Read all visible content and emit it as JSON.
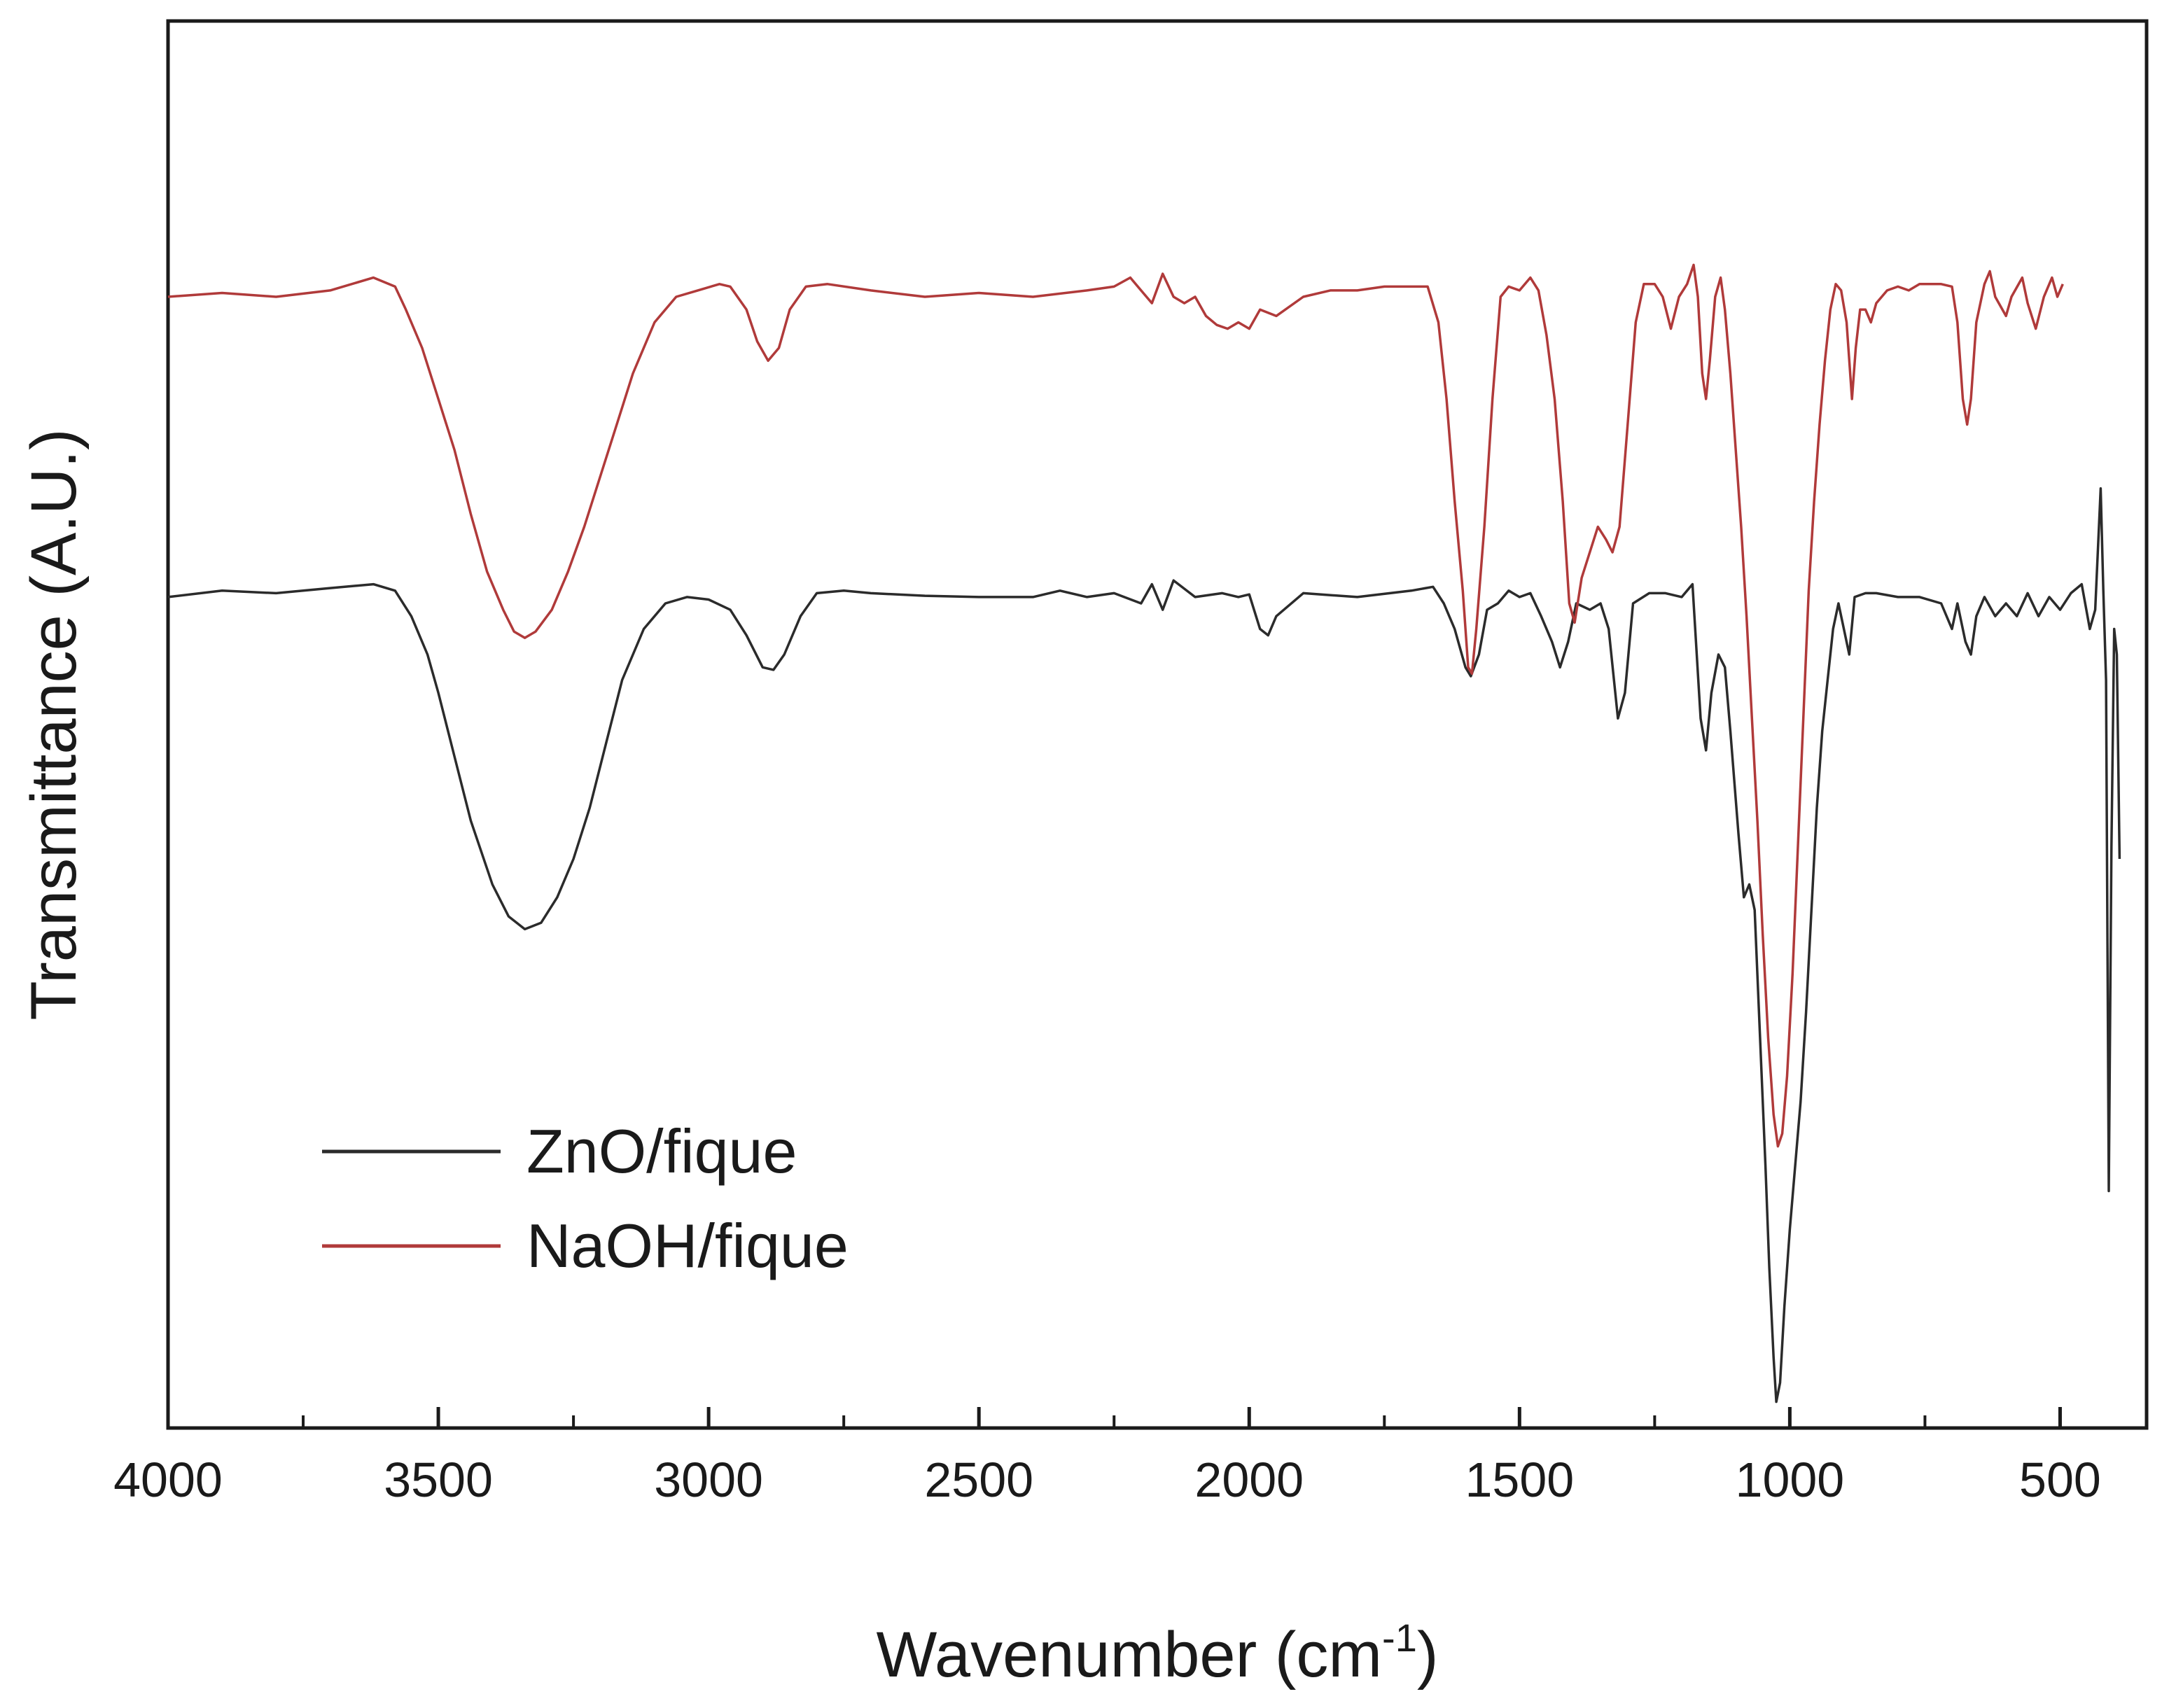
{
  "chart_data": {
    "type": "line",
    "title": "",
    "xlabel": "Wavenumber (cm",
    "xlabel_sup": "-1",
    "xlabel_close": ")",
    "ylabel": "Transmittance (A.U.)",
    "xlim": [
      4000,
      340
    ],
    "x_reversed": true,
    "ylim": [
      0,
      100
    ],
    "x_ticks": [
      4000,
      3500,
      3000,
      2500,
      2000,
      1500,
      1000,
      500
    ],
    "x_tick_labels": [
      "4000",
      "3500",
      "3000",
      "2500",
      "2000",
      "1500",
      "1000",
      "500"
    ],
    "x_minor_ticks": [
      3750,
      3250,
      2750,
      2250,
      1750,
      1250,
      750
    ],
    "y_ticks_shown": false,
    "grid": false,
    "legend_position": "bottom-left",
    "series": [
      {
        "name": "ZnO/fique",
        "color": "#2b2b2b",
        "points": [
          [
            4000,
            64.5
          ],
          [
            3900,
            65.0
          ],
          [
            3800,
            64.8
          ],
          [
            3700,
            65.2
          ],
          [
            3620,
            65.5
          ],
          [
            3580,
            65.0
          ],
          [
            3550,
            63.0
          ],
          [
            3520,
            60.0
          ],
          [
            3500,
            57.0
          ],
          [
            3470,
            52.0
          ],
          [
            3440,
            47.0
          ],
          [
            3400,
            42.0
          ],
          [
            3370,
            39.5
          ],
          [
            3340,
            38.5
          ],
          [
            3310,
            39.0
          ],
          [
            3280,
            41.0
          ],
          [
            3250,
            44.0
          ],
          [
            3220,
            48.0
          ],
          [
            3190,
            53.0
          ],
          [
            3160,
            58.0
          ],
          [
            3120,
            62.0
          ],
          [
            3080,
            64.0
          ],
          [
            3040,
            64.5
          ],
          [
            3000,
            64.3
          ],
          [
            2960,
            63.5
          ],
          [
            2930,
            61.5
          ],
          [
            2900,
            59.0
          ],
          [
            2880,
            58.8
          ],
          [
            2860,
            60.0
          ],
          [
            2830,
            63.0
          ],
          [
            2800,
            64.8
          ],
          [
            2750,
            65.0
          ],
          [
            2700,
            64.8
          ],
          [
            2600,
            64.6
          ],
          [
            2500,
            64.5
          ],
          [
            2400,
            64.5
          ],
          [
            2350,
            65.0
          ],
          [
            2300,
            64.5
          ],
          [
            2250,
            64.8
          ],
          [
            2200,
            64.0
          ],
          [
            2180,
            65.5
          ],
          [
            2160,
            63.5
          ],
          [
            2140,
            65.8
          ],
          [
            2100,
            64.5
          ],
          [
            2050,
            64.8
          ],
          [
            2020,
            64.5
          ],
          [
            2000,
            64.7
          ],
          [
            1980,
            62.0
          ],
          [
            1965,
            61.5
          ],
          [
            1950,
            63.0
          ],
          [
            1900,
            64.8
          ],
          [
            1800,
            64.5
          ],
          [
            1700,
            65.0
          ],
          [
            1660,
            65.3
          ],
          [
            1640,
            64.0
          ],
          [
            1620,
            62.0
          ],
          [
            1600,
            59.0
          ],
          [
            1590,
            58.3
          ],
          [
            1575,
            60.0
          ],
          [
            1560,
            63.5
          ],
          [
            1540,
            64.0
          ],
          [
            1520,
            65.0
          ],
          [
            1500,
            64.5
          ],
          [
            1480,
            64.8
          ],
          [
            1460,
            63.0
          ],
          [
            1440,
            61.0
          ],
          [
            1425,
            59.0
          ],
          [
            1410,
            61.0
          ],
          [
            1395,
            64.0
          ],
          [
            1370,
            63.5
          ],
          [
            1350,
            64.0
          ],
          [
            1335,
            62.0
          ],
          [
            1318,
            55.0
          ],
          [
            1305,
            57.0
          ],
          [
            1290,
            64.0
          ],
          [
            1260,
            64.8
          ],
          [
            1230,
            64.8
          ],
          [
            1200,
            64.5
          ],
          [
            1180,
            65.5
          ],
          [
            1165,
            55.0
          ],
          [
            1155,
            52.5
          ],
          [
            1145,
            57.0
          ],
          [
            1132,
            60.0
          ],
          [
            1120,
            59.0
          ],
          [
            1110,
            54.0
          ],
          [
            1095,
            46.0
          ],
          [
            1085,
            41.0
          ],
          [
            1075,
            42.0
          ],
          [
            1065,
            40.0
          ],
          [
            1055,
            30.0
          ],
          [
            1045,
            20.0
          ],
          [
            1038,
            12.0
          ],
          [
            1030,
            5.0
          ],
          [
            1025,
            1.5
          ],
          [
            1018,
            3.0
          ],
          [
            1010,
            9.0
          ],
          [
            1000,
            15.0
          ],
          [
            990,
            20.0
          ],
          [
            980,
            25.0
          ],
          [
            970,
            32.0
          ],
          [
            960,
            40.0
          ],
          [
            950,
            48.0
          ],
          [
            940,
            54.0
          ],
          [
            930,
            58.0
          ],
          [
            920,
            62.0
          ],
          [
            910,
            64.0
          ],
          [
            900,
            62.0
          ],
          [
            890,
            60.0
          ],
          [
            880,
            64.5
          ],
          [
            860,
            64.8
          ],
          [
            840,
            64.8
          ],
          [
            800,
            64.5
          ],
          [
            760,
            64.5
          ],
          [
            720,
            64.0
          ],
          [
            700,
            62.0
          ],
          [
            690,
            64.0
          ],
          [
            675,
            61.0
          ],
          [
            665,
            60.0
          ],
          [
            655,
            63.0
          ],
          [
            640,
            64.5
          ],
          [
            620,
            63.0
          ],
          [
            600,
            64.0
          ],
          [
            580,
            63.0
          ],
          [
            560,
            64.8
          ],
          [
            540,
            63.0
          ],
          [
            520,
            64.5
          ],
          [
            500,
            63.5
          ],
          [
            480,
            64.8
          ],
          [
            460,
            65.5
          ],
          [
            445,
            62.0
          ],
          [
            435,
            63.5
          ],
          [
            425,
            73.0
          ],
          [
            420,
            65.0
          ],
          [
            415,
            58.0
          ],
          [
            410,
            18.0
          ],
          [
            405,
            45.0
          ],
          [
            400,
            62.0
          ],
          [
            395,
            60.0
          ],
          [
            390,
            44.0
          ]
        ]
      },
      {
        "name": "NaOH/fique",
        "color": "#b03a3a",
        "points": [
          [
            4000,
            88.0
          ],
          [
            3900,
            88.3
          ],
          [
            3800,
            88.0
          ],
          [
            3700,
            88.5
          ],
          [
            3620,
            89.5
          ],
          [
            3580,
            88.8
          ],
          [
            3560,
            87.0
          ],
          [
            3530,
            84.0
          ],
          [
            3500,
            80.0
          ],
          [
            3470,
            76.0
          ],
          [
            3440,
            71.0
          ],
          [
            3410,
            66.5
          ],
          [
            3380,
            63.5
          ],
          [
            3360,
            61.8
          ],
          [
            3340,
            61.3
          ],
          [
            3320,
            61.8
          ],
          [
            3290,
            63.5
          ],
          [
            3260,
            66.5
          ],
          [
            3230,
            70.0
          ],
          [
            3200,
            74.0
          ],
          [
            3170,
            78.0
          ],
          [
            3140,
            82.0
          ],
          [
            3100,
            86.0
          ],
          [
            3060,
            88.0
          ],
          [
            3020,
            88.5
          ],
          [
            2980,
            89.0
          ],
          [
            2960,
            88.8
          ],
          [
            2930,
            87.0
          ],
          [
            2910,
            84.5
          ],
          [
            2890,
            83.0
          ],
          [
            2870,
            84.0
          ],
          [
            2850,
            87.0
          ],
          [
            2820,
            88.8
          ],
          [
            2780,
            89.0
          ],
          [
            2700,
            88.5
          ],
          [
            2600,
            88.0
          ],
          [
            2500,
            88.3
          ],
          [
            2400,
            88.0
          ],
          [
            2300,
            88.5
          ],
          [
            2250,
            88.8
          ],
          [
            2220,
            89.5
          ],
          [
            2200,
            88.5
          ],
          [
            2180,
            87.5
          ],
          [
            2160,
            89.8
          ],
          [
            2140,
            88.0
          ],
          [
            2120,
            87.5
          ],
          [
            2100,
            88.0
          ],
          [
            2080,
            86.5
          ],
          [
            2060,
            85.8
          ],
          [
            2040,
            85.5
          ],
          [
            2020,
            86.0
          ],
          [
            2000,
            85.5
          ],
          [
            1980,
            87.0
          ],
          [
            1950,
            86.5
          ],
          [
            1900,
            88.0
          ],
          [
            1850,
            88.5
          ],
          [
            1800,
            88.5
          ],
          [
            1750,
            88.8
          ],
          [
            1700,
            88.8
          ],
          [
            1670,
            88.8
          ],
          [
            1650,
            86.0
          ],
          [
            1635,
            80.0
          ],
          [
            1620,
            72.0
          ],
          [
            1605,
            65.0
          ],
          [
            1595,
            59.0
          ],
          [
            1588,
            58.5
          ],
          [
            1580,
            62.0
          ],
          [
            1565,
            70.0
          ],
          [
            1550,
            80.0
          ],
          [
            1535,
            88.0
          ],
          [
            1520,
            88.8
          ],
          [
            1500,
            88.5
          ],
          [
            1480,
            89.5
          ],
          [
            1465,
            88.5
          ],
          [
            1450,
            85.0
          ],
          [
            1435,
            80.0
          ],
          [
            1420,
            72.0
          ],
          [
            1408,
            64.0
          ],
          [
            1398,
            62.5
          ],
          [
            1385,
            66.0
          ],
          [
            1370,
            68.0
          ],
          [
            1355,
            70.0
          ],
          [
            1340,
            69.0
          ],
          [
            1328,
            68.0
          ],
          [
            1315,
            70.0
          ],
          [
            1300,
            78.0
          ],
          [
            1285,
            86.0
          ],
          [
            1270,
            89.0
          ],
          [
            1250,
            89.0
          ],
          [
            1235,
            88.0
          ],
          [
            1220,
            85.5
          ],
          [
            1205,
            88.0
          ],
          [
            1190,
            89.0
          ],
          [
            1178,
            90.5
          ],
          [
            1170,
            88.0
          ],
          [
            1162,
            82.0
          ],
          [
            1155,
            80.0
          ],
          [
            1148,
            83.0
          ],
          [
            1138,
            88.0
          ],
          [
            1128,
            89.5
          ],
          [
            1120,
            87.0
          ],
          [
            1110,
            82.0
          ],
          [
            1100,
            76.0
          ],
          [
            1090,
            70.0
          ],
          [
            1080,
            63.0
          ],
          [
            1070,
            55.0
          ],
          [
            1060,
            47.0
          ],
          [
            1050,
            38.0
          ],
          [
            1040,
            30.0
          ],
          [
            1030,
            24.0
          ],
          [
            1022,
            21.5
          ],
          [
            1014,
            22.5
          ],
          [
            1005,
            27.0
          ],
          [
            995,
            35.0
          ],
          [
            985,
            45.0
          ],
          [
            975,
            55.0
          ],
          [
            965,
            65.0
          ],
          [
            955,
            72.0
          ],
          [
            945,
            78.0
          ],
          [
            935,
            83.0
          ],
          [
            925,
            87.0
          ],
          [
            915,
            89.0
          ],
          [
            905,
            88.5
          ],
          [
            895,
            86.0
          ],
          [
            885,
            80.0
          ],
          [
            878,
            84.0
          ],
          [
            870,
            87.0
          ],
          [
            860,
            87.0
          ],
          [
            850,
            86.0
          ],
          [
            840,
            87.5
          ],
          [
            820,
            88.5
          ],
          [
            800,
            88.8
          ],
          [
            780,
            88.5
          ],
          [
            760,
            89.0
          ],
          [
            720,
            89.0
          ],
          [
            700,
            88.8
          ],
          [
            690,
            86.0
          ],
          [
            680,
            80.0
          ],
          [
            672,
            78.0
          ],
          [
            665,
            80.0
          ],
          [
            655,
            86.0
          ],
          [
            640,
            89.0
          ],
          [
            630,
            90.0
          ],
          [
            620,
            88.0
          ],
          [
            600,
            86.5
          ],
          [
            590,
            88.0
          ],
          [
            570,
            89.5
          ],
          [
            560,
            87.5
          ],
          [
            545,
            85.5
          ],
          [
            530,
            88.0
          ],
          [
            515,
            89.5
          ],
          [
            505,
            88.0
          ],
          [
            495,
            89.0
          ]
        ]
      }
    ]
  }
}
